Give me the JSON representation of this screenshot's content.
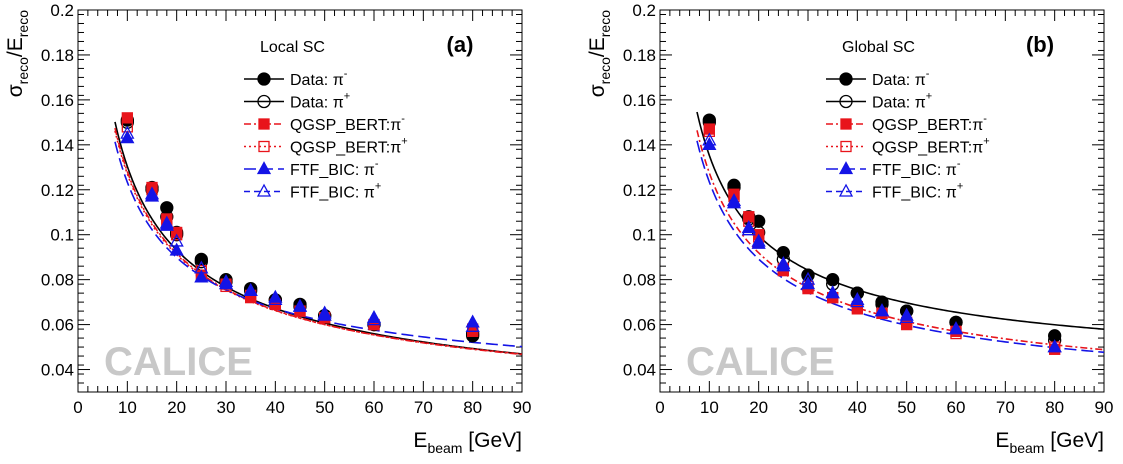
{
  "chart_data": [
    {
      "type": "scatter",
      "panel_label": "(a)",
      "legend_title": "Local SC",
      "watermark": "CALICE",
      "xlabel": {
        "main": "E",
        "sub": "beam",
        "suffix": " [GeV]"
      },
      "ylabel": {
        "num": "σ",
        "num_sub": "reco",
        "den": "E",
        "den_sub": "reco"
      },
      "xlim": [
        0,
        90
      ],
      "ylim": [
        0.03,
        0.2
      ],
      "xticks": [
        "0",
        "10",
        "20",
        "30",
        "40",
        "50",
        "60",
        "70",
        "80",
        "90"
      ],
      "yticks": [
        "0.04",
        "0.06",
        "0.08",
        "0.1",
        "0.12",
        "0.14",
        "0.16",
        "0.18",
        "0.2"
      ],
      "legend_position": "top-right",
      "series": [
        {
          "name": "Data: π",
          "sup": "-",
          "marker": "circle",
          "filled": true,
          "color": "#000000",
          "line": "solid",
          "x": [
            10,
            15,
            18,
            20,
            25,
            30,
            35,
            40,
            45,
            50,
            60,
            80
          ],
          "y": [
            0.151,
            0.121,
            0.112,
            0.101,
            0.089,
            0.08,
            0.076,
            0.071,
            0.069,
            0.064,
            0.06,
            0.055
          ],
          "fit": [
            0.0188,
            0.408,
            0.001
          ]
        },
        {
          "name": "Data: π",
          "sup": "+",
          "marker": "circle",
          "filled": false,
          "color": "#000000",
          "line": "solid",
          "x": [
            10,
            15,
            18,
            20,
            25,
            30,
            35,
            40,
            45,
            50,
            60,
            80
          ],
          "y": [
            0.15,
            0.12,
            0.108,
            0.1,
            0.088,
            0.079,
            0.075,
            0.071,
            0.068,
            0.064,
            0.06,
            0.056
          ]
        },
        {
          "name": "QGSP_BERT:π",
          "sup": "-",
          "marker": "square",
          "filled": true,
          "color": "#e8141b",
          "line": "dashdot",
          "x": [
            10,
            15,
            18,
            20,
            25,
            30,
            35,
            40,
            45,
            50,
            60,
            80
          ],
          "y": [
            0.152,
            0.121,
            0.107,
            0.101,
            0.082,
            0.078,
            0.072,
            0.069,
            0.066,
            0.063,
            0.06,
            0.057
          ],
          "fit": [
            0.0201,
            0.4,
            0.003
          ]
        },
        {
          "name": "QGSP_BERT:π",
          "sup": "+",
          "marker": "square",
          "filled": false,
          "color": "#e8141b",
          "line": "dotted",
          "x": [
            10,
            15,
            18,
            20,
            25,
            30,
            35,
            40,
            45,
            50,
            60,
            80
          ],
          "y": [
            0.148,
            0.12,
            0.105,
            0.1,
            0.084,
            0.077,
            0.073,
            0.069,
            0.066,
            0.063,
            0.06,
            0.058
          ],
          "fit": [
            0.0215,
            0.396,
            0.0
          ]
        },
        {
          "name": "FTF_BIC: π",
          "sup": "-",
          "marker": "triangle",
          "filled": true,
          "color": "#1414e6",
          "line": "longdash",
          "x": [
            10,
            15,
            18,
            20,
            25,
            30,
            35,
            40,
            45,
            50,
            60,
            80
          ],
          "y": [
            0.143,
            0.117,
            0.104,
            0.093,
            0.081,
            0.078,
            0.075,
            0.072,
            0.068,
            0.064,
            0.063,
            0.061
          ],
          "fit": [
            0.0305,
            0.378,
            0.0
          ]
        },
        {
          "name": "FTF_BIC: π",
          "sup": "+",
          "marker": "triangle",
          "filled": false,
          "color": "#1414e6",
          "line": "dashed",
          "x": [
            10,
            15,
            18,
            20,
            25,
            30,
            35,
            40,
            45,
            50,
            60,
            80
          ],
          "y": [
            0.145,
            0.118,
            0.105,
            0.097,
            0.085,
            0.079,
            0.075,
            0.071,
            0.068,
            0.065,
            0.062,
            0.059
          ]
        }
      ]
    },
    {
      "type": "scatter",
      "panel_label": "(b)",
      "legend_title": "Global SC",
      "watermark": "CALICE",
      "xlabel": {
        "main": "E",
        "sub": "beam",
        "suffix": " [GeV]"
      },
      "ylabel": {
        "num": "σ",
        "num_sub": "reco",
        "den": "E",
        "den_sub": "reco"
      },
      "xlim": [
        0,
        90
      ],
      "ylim": [
        0.03,
        0.2
      ],
      "xticks": [
        "0",
        "10",
        "20",
        "30",
        "40",
        "50",
        "60",
        "70",
        "80",
        "90"
      ],
      "yticks": [
        "0.04",
        "0.06",
        "0.08",
        "0.1",
        "0.12",
        "0.14",
        "0.16",
        "0.18",
        "0.2"
      ],
      "legend_position": "top-right",
      "series": [
        {
          "name": "Data: π",
          "sup": "-",
          "marker": "circle",
          "filled": true,
          "color": "#000000",
          "line": "solid",
          "x": [
            10,
            15,
            18,
            20,
            25,
            30,
            35,
            40,
            45,
            50,
            60,
            80
          ],
          "y": [
            0.151,
            0.122,
            0.108,
            0.106,
            0.092,
            0.082,
            0.08,
            0.074,
            0.07,
            0.066,
            0.061,
            0.055
          ],
          "fit": [
            0.0386,
            0.41,
            0.0
          ]
        },
        {
          "name": "Data: π",
          "sup": "+",
          "marker": "circle",
          "filled": false,
          "color": "#000000",
          "line": "solid",
          "x": [
            10,
            15,
            18,
            20,
            25,
            30,
            35,
            40,
            45,
            50,
            60,
            80
          ],
          "y": [
            0.15,
            0.121,
            0.107,
            0.101,
            0.089,
            0.082,
            0.078,
            0.074,
            0.069,
            0.066,
            0.061,
            0.053
          ]
        },
        {
          "name": "QGSP_BERT:π",
          "sup": "-",
          "marker": "square",
          "filled": true,
          "color": "#e8141b",
          "line": "dashdot",
          "x": [
            10,
            15,
            18,
            20,
            25,
            30,
            35,
            40,
            45,
            50,
            60,
            80
          ],
          "y": [
            0.147,
            0.118,
            0.108,
            0.1,
            0.084,
            0.076,
            0.072,
            0.067,
            0.065,
            0.06,
            0.057,
            0.049
          ],
          "fit": [
            0.0255,
            0.395,
            0.0
          ]
        },
        {
          "name": "QGSP_BERT:π",
          "sup": "+",
          "marker": "square",
          "filled": false,
          "color": "#e8141b",
          "line": "dotted",
          "x": [
            10,
            15,
            18,
            20,
            25,
            30,
            35,
            40,
            45,
            50,
            60,
            80
          ],
          "y": [
            0.146,
            0.117,
            0.106,
            0.099,
            0.085,
            0.077,
            0.072,
            0.068,
            0.065,
            0.061,
            0.056,
            0.05
          ]
        },
        {
          "name": "FTF_BIC: π",
          "sup": "-",
          "marker": "triangle",
          "filled": true,
          "color": "#1414e6",
          "line": "longdash",
          "x": [
            10,
            15,
            18,
            20,
            25,
            30,
            35,
            40,
            45,
            50,
            60,
            80
          ],
          "y": [
            0.14,
            0.114,
            0.103,
            0.096,
            0.086,
            0.078,
            0.074,
            0.071,
            0.066,
            0.064,
            0.058,
            0.05
          ],
          "fit": [
            0.0255,
            0.382,
            0.0
          ]
        },
        {
          "name": "FTF_BIC: π",
          "sup": "+",
          "marker": "triangle",
          "filled": false,
          "color": "#1414e6",
          "line": "dashed",
          "x": [
            10,
            15,
            18,
            20,
            25,
            30,
            35,
            40,
            45,
            50,
            60,
            80
          ],
          "y": [
            0.142,
            0.115,
            0.102,
            0.097,
            0.087,
            0.08,
            0.074,
            0.07,
            0.066,
            0.063,
            0.058,
            0.05
          ]
        }
      ]
    }
  ]
}
